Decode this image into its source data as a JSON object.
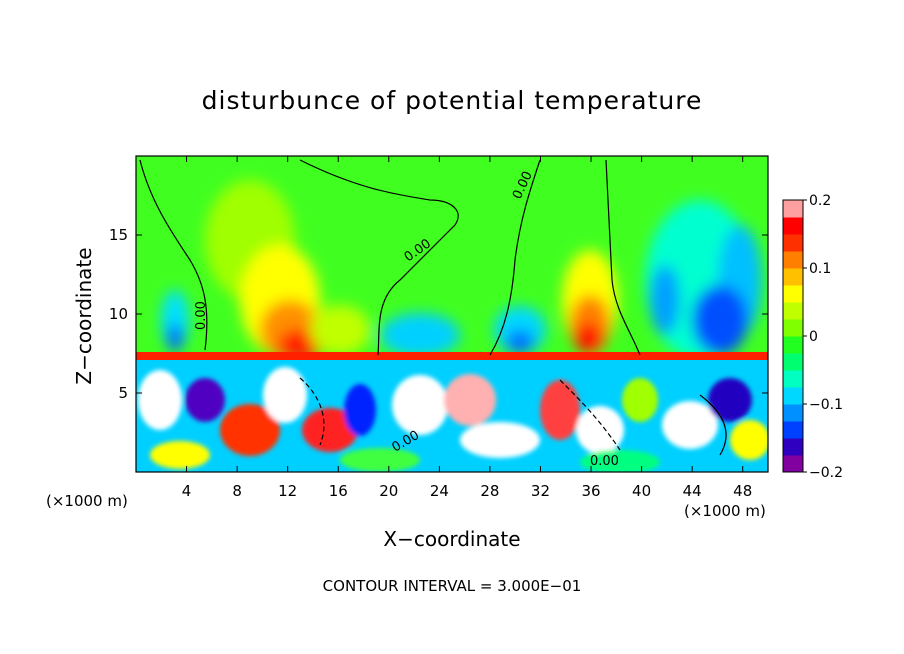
{
  "chart_data": {
    "type": "heatmap",
    "title": "disturbunce of potential temperature",
    "xlabel": "X−coordinate",
    "ylabel": "Z−coordinate",
    "x_unit_label": "(×1000 m)",
    "xlim": [
      0,
      50
    ],
    "ylim": [
      0,
      20
    ],
    "x_ticks": [
      4,
      8,
      12,
      16,
      20,
      24,
      28,
      32,
      36,
      40,
      44,
      48
    ],
    "y_ticks": [
      5,
      10,
      15
    ],
    "colorbar": {
      "min": -0.2,
      "max": 0.2,
      "tick_values": [
        0.2,
        0.1,
        0,
        -0.1,
        -0.2
      ],
      "tick_labels": [
        "0.2",
        "0.1",
        "0",
        "−0.1",
        "−0.2"
      ],
      "colors": [
        "#8000a0",
        "#3000c0",
        "#0040ff",
        "#0090ff",
        "#00d8ff",
        "#00ffc0",
        "#00ff70",
        "#20ff20",
        "#80ff00",
        "#c0ff00",
        "#ffff00",
        "#ffc000",
        "#ff8000",
        "#ff3000",
        "#ff0000",
        "#ffa0a0"
      ]
    },
    "contour_label": "0.00",
    "contour_interval_text": "CONTOUR INTERVAL = 3.000E−01"
  }
}
